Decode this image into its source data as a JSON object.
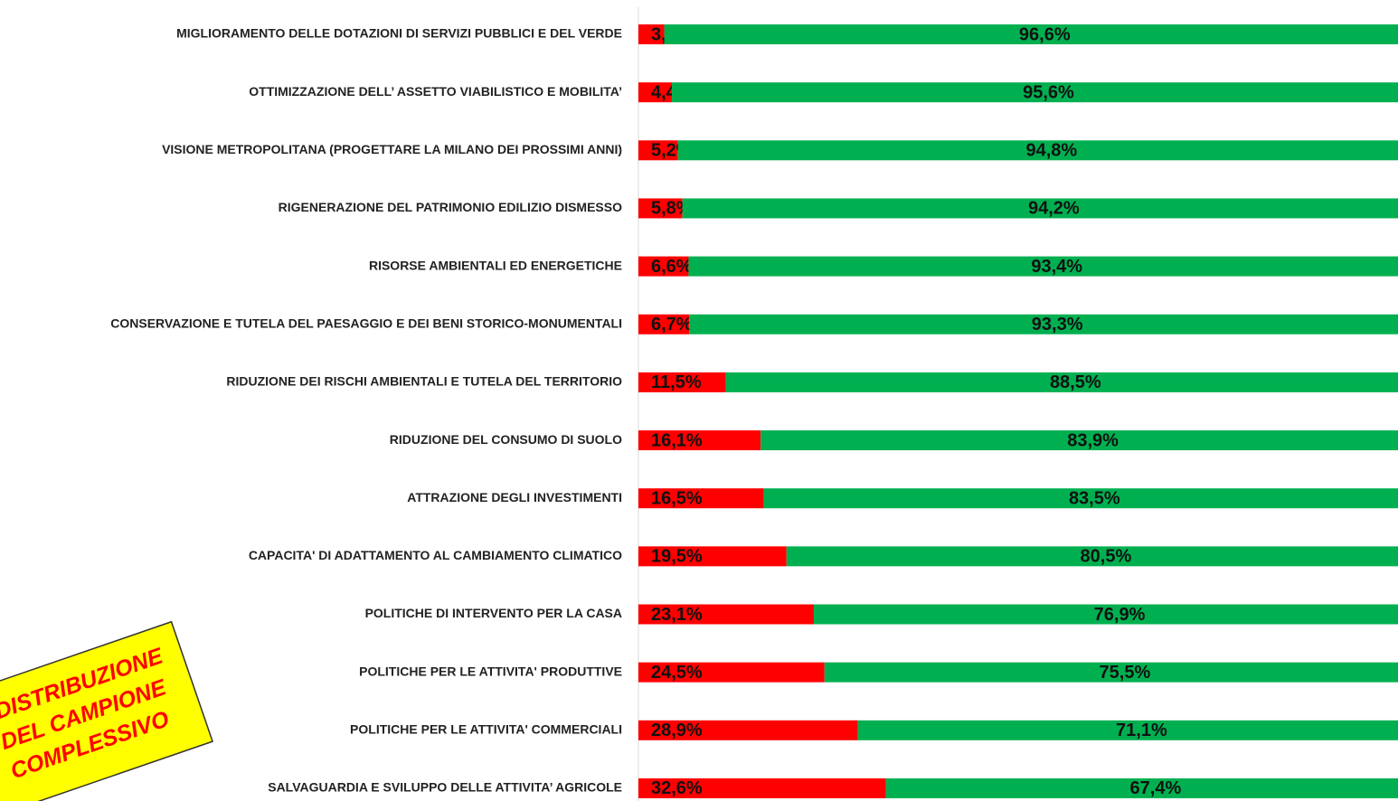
{
  "chart_data": {
    "type": "stacked_barh",
    "categories": [
      "MIGLIORAMENTO DELLE DOTAZIONI DI SERVIZI PUBBLICI E DEL VERDE",
      "OTTIMIZZAZIONE DELL’ ASSETTO VIABILISTICO E MOBILITA’",
      "VISIONE METROPOLITANA (PROGETTARE LA MILANO DEI PROSSIMI ANNI)",
      "RIGENERAZIONE DEL PATRIMONIO EDILIZIO DISMESSO",
      "RISORSE AMBIENTALI ED ENERGETICHE",
      "CONSERVAZIONE E TUTELA DEL PAESAGGIO E DEI BENI STORICO-MONUMENTALI",
      "RIDUZIONE DEI RISCHI AMBIENTALI E TUTELA DEL TERRITORIO",
      "RIDUZIONE DEL CONSUMO DI SUOLO",
      "ATTRAZIONE DEGLI INVESTIMENTI",
      "CAPACITA' DI ADATTAMENTO AL CAMBIAMENTO CLIMATICO",
      "POLITICHE DI INTERVENTO PER LA CASA",
      "POLITICHE PER LE ATTIVITA' PRODUTTIVE",
      "POLITICHE PER LE ATTIVITA' COMMERCIALI",
      "SALVAGUARDIA E SVILUPPO DELLE ATTIVITA’ AGRICOLE"
    ],
    "series": [
      {
        "color": "#ff0000",
        "values": [
          3.4,
          4.4,
          5.2,
          5.8,
          6.6,
          6.7,
          11.5,
          16.1,
          16.5,
          19.5,
          23.1,
          24.5,
          28.9,
          32.6
        ],
        "value_labels": [
          "3,4%",
          "4,4%",
          "5,2%",
          "5,8%",
          "6,6%",
          "6,7%",
          "11,5%",
          "16,1%",
          "16,5%",
          "19,5%",
          "23,1%",
          "24,5%",
          "28,9%",
          "32,6%"
        ]
      },
      {
        "color": "#00b050",
        "values": [
          96.6,
          95.6,
          94.8,
          94.2,
          93.4,
          93.3,
          88.5,
          83.9,
          83.5,
          80.5,
          76.9,
          75.5,
          71.1,
          67.4
        ],
        "value_labels": [
          "96,6%",
          "95,6%",
          "94,8%",
          "94,2%",
          "93,4%",
          "93,3%",
          "88,5%",
          "83,9%",
          "83,5%",
          "80,5%",
          "76,9%",
          "75,5%",
          "71,1%",
          "67,4%"
        ]
      }
    ],
    "xlim": [
      0,
      100
    ],
    "annotation": [
      "DISTRIBUZIONE",
      "DEL CAMPIONE",
      "COMPLESSIVO"
    ]
  }
}
